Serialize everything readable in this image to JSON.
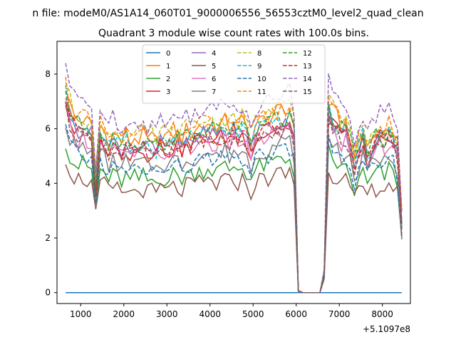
{
  "figure": {
    "suptitle": "n file: modeM0/AS1A14_060T01_9000006556_56553cztM0_level2_quad_clean",
    "offset_label": "+5.1097e8"
  },
  "chart_data": {
    "type": "line",
    "title": "Quadrant 3 module wise count rates with 100.0s bins.",
    "xlabel": "",
    "ylabel": "",
    "xlim": [
      450,
      8650
    ],
    "ylim": [
      -0.4,
      9.2
    ],
    "xticks": [
      1000,
      2000,
      3000,
      4000,
      5000,
      6000,
      7000,
      8000
    ],
    "yticks": [
      0,
      2,
      4,
      6,
      8
    ],
    "grid": false,
    "legend": {
      "placement": "top-center",
      "columns": 4
    },
    "x": [
      650,
      750,
      850,
      950,
      1050,
      1150,
      1250,
      1350,
      1450,
      1550,
      1650,
      1750,
      1850,
      1950,
      2050,
      2150,
      2250,
      2350,
      2450,
      2550,
      2650,
      2750,
      2850,
      2950,
      3050,
      3150,
      3250,
      3350,
      3450,
      3550,
      3650,
      3750,
      3850,
      3950,
      4050,
      4150,
      4250,
      4350,
      4450,
      4550,
      4650,
      4750,
      4850,
      4950,
      5050,
      5150,
      5250,
      5350,
      5450,
      5550,
      5650,
      5750,
      5850,
      5950,
      6050,
      6150,
      6250,
      6350,
      6450,
      6550,
      6650,
      6750,
      6850,
      6950,
      7050,
      7150,
      7250,
      7350,
      7450,
      7550,
      7650,
      7750,
      7850,
      7950,
      8050,
      8150,
      8250,
      8350,
      8450
    ],
    "base_profile": [
      1.0,
      0.9,
      0.85,
      0.83,
      0.84,
      0.82,
      0.8,
      0.55,
      0.8,
      0.78,
      0.74,
      0.76,
      0.75,
      0.73,
      0.76,
      0.72,
      0.75,
      0.74,
      0.76,
      0.73,
      0.74,
      0.72,
      0.76,
      0.75,
      0.74,
      0.77,
      0.76,
      0.75,
      0.78,
      0.77,
      0.79,
      0.8,
      0.8,
      0.82,
      0.8,
      0.79,
      0.81,
      0.82,
      0.8,
      0.83,
      0.81,
      0.82,
      0.79,
      0.74,
      0.8,
      0.82,
      0.83,
      0.84,
      0.85,
      0.86,
      0.87,
      0.86,
      0.88,
      0.8,
      0.01,
      0.0,
      0.0,
      0.0,
      0.0,
      0.0,
      0.1,
      0.92,
      0.87,
      0.84,
      0.8,
      0.82,
      0.75,
      0.66,
      0.72,
      0.78,
      0.7,
      0.74,
      0.77,
      0.79,
      0.76,
      0.8,
      0.78,
      0.72,
      0.35
    ],
    "series": [
      {
        "name": "0",
        "color": "#1f77b4",
        "dash": "solid",
        "level": 0.0
      },
      {
        "name": "1",
        "color": "#ff7f0e",
        "dash": "solid",
        "level": 7.6
      },
      {
        "name": "2",
        "color": "#2ca02c",
        "dash": "solid",
        "level": 5.6
      },
      {
        "name": "3",
        "color": "#d62728",
        "dash": "solid",
        "level": 7.0
      },
      {
        "name": "4",
        "color": "#9467bd",
        "dash": "solid",
        "level": 7.2
      },
      {
        "name": "5",
        "color": "#8c564b",
        "dash": "solid",
        "level": 5.0
      },
      {
        "name": "6",
        "color": "#e377c2",
        "dash": "solid",
        "level": 6.8
      },
      {
        "name": "7",
        "color": "#7f7f7f",
        "dash": "solid",
        "level": 6.3
      },
      {
        "name": "8",
        "color": "#bcbd22",
        "dash": "dashed",
        "level": 7.8
      },
      {
        "name": "9",
        "color": "#17becf",
        "dash": "dashed",
        "level": 7.3
      },
      {
        "name": "10",
        "color": "#1f77b4",
        "dash": "dashed",
        "level": 6.0
      },
      {
        "name": "11",
        "color": "#ff7f0e",
        "dash": "dashed",
        "level": 7.7
      },
      {
        "name": "12",
        "color": "#2ca02c",
        "dash": "dashed",
        "level": 7.4
      },
      {
        "name": "13",
        "color": "#d62728",
        "dash": "dashed",
        "level": 7.1
      },
      {
        "name": "14",
        "color": "#9467bd",
        "dash": "dashed",
        "level": 8.4
      },
      {
        "name": "15",
        "color": "#8c564b",
        "dash": "dashed",
        "level": 6.9
      }
    ]
  }
}
